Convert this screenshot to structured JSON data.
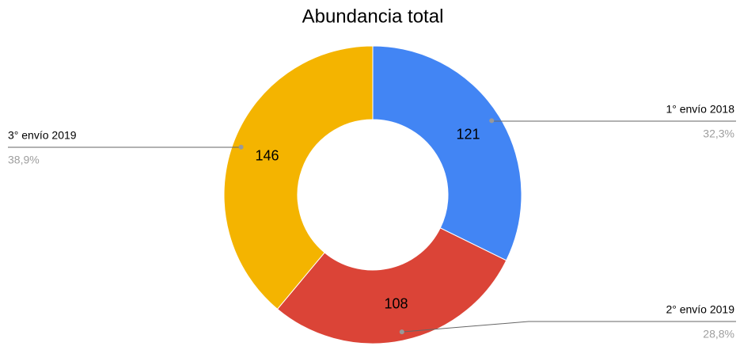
{
  "chart_data": {
    "type": "donut",
    "title": "Abundancia total",
    "categories": [
      "1° envío 2018",
      "2° envío 2019",
      "3° envío 2019"
    ],
    "values": [
      121,
      108,
      146
    ],
    "percent_labels": [
      "32,3%",
      "28,8%",
      "38,9%"
    ],
    "colors": [
      "#4285f4",
      "#db4437",
      "#f4b400"
    ]
  }
}
